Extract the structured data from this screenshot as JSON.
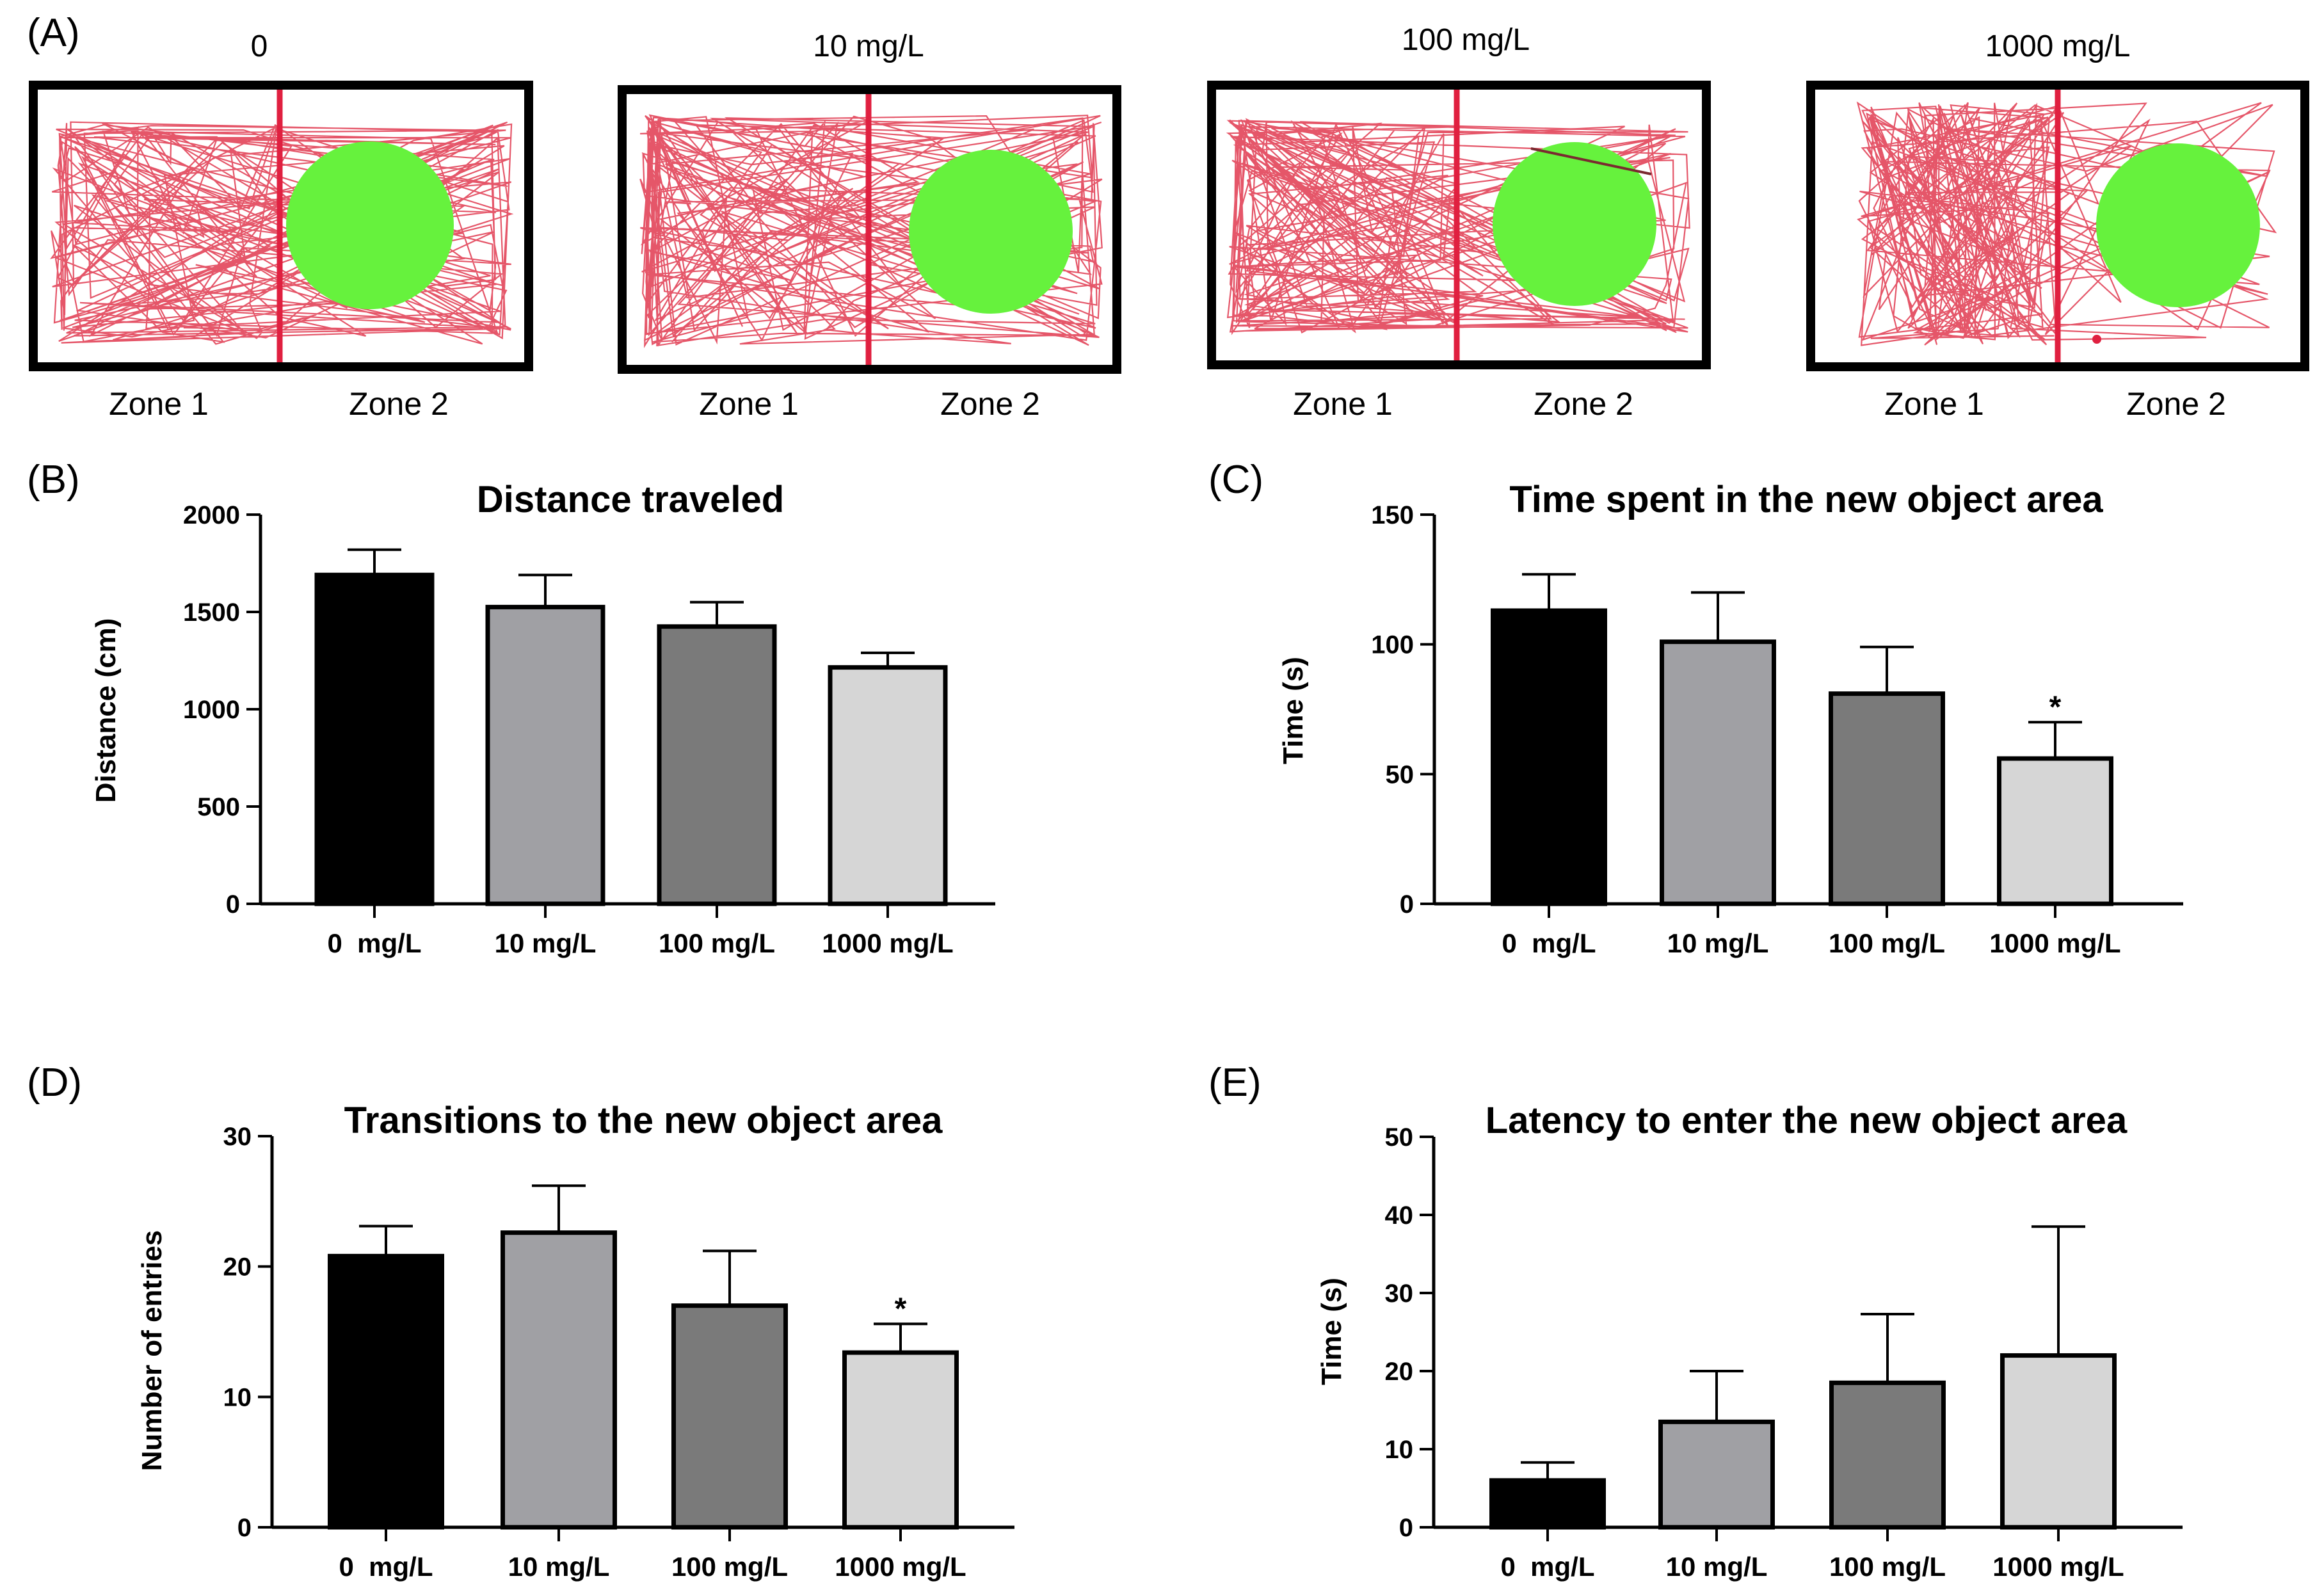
{
  "panel_a": {
    "letter": "(A)",
    "arenas": [
      {
        "title": "0",
        "zone1": "Zone 1",
        "zone2": "Zone 2"
      },
      {
        "title": "10 mg/L",
        "zone1": "Zone 1",
        "zone2": "Zone 2"
      },
      {
        "title": "100 mg/L",
        "zone1": "Zone 1",
        "zone2": "Zone 2"
      },
      {
        "title": "1000 mg/L",
        "zone1": "Zone 1",
        "zone2": "Zone 2"
      }
    ],
    "colors": {
      "track": "#e0384f",
      "divider": "#e02040",
      "object": "#66f23d",
      "frame": "#000000"
    }
  },
  "chart_data": [
    {
      "letter": "(B)",
      "type": "bar",
      "title": "Distance traveled",
      "xlabel": "",
      "ylabel": "Distance (cm)",
      "categories": [
        "0  mg/L",
        "10 mg/L",
        "100 mg/L",
        "1000 mg/L"
      ],
      "values": [
        1690,
        1525,
        1425,
        1215
      ],
      "errors": [
        130,
        165,
        125,
        75
      ],
      "significance": [
        "",
        "",
        "",
        ""
      ],
      "ylim": [
        0,
        2000
      ],
      "ticks": [
        0,
        500,
        1000,
        1500,
        2000
      ],
      "tick_labels": [
        "0",
        "500",
        "1000",
        "1500",
        "2000"
      ],
      "colors": [
        "#000000",
        "#a0a0a4",
        "#7a7a7a",
        "#d6d6d6"
      ]
    },
    {
      "letter": "(C)",
      "type": "bar",
      "title": "Time spent in the new object area",
      "xlabel": "",
      "ylabel": "Time (s)",
      "categories": [
        "0  mg/L",
        "10 mg/L",
        "100 mg/L",
        "1000 mg/L"
      ],
      "values": [
        113,
        101,
        81,
        56
      ],
      "errors": [
        14,
        19,
        18,
        14
      ],
      "significance": [
        "",
        "",
        "",
        "*"
      ],
      "ylim": [
        0,
        150
      ],
      "ticks": [
        0,
        50,
        100,
        150
      ],
      "tick_labels": [
        "0",
        "50",
        "100",
        "150"
      ],
      "colors": [
        "#000000",
        "#a0a0a4",
        "#7a7a7a",
        "#d6d6d6"
      ]
    },
    {
      "letter": "(D)",
      "type": "bar",
      "title": "Transitions to the new object area",
      "xlabel": "",
      "ylabel": "Number of entries",
      "categories": [
        "0  mg/L",
        "10 mg/L",
        "100 mg/L",
        "1000 mg/L"
      ],
      "values": [
        20.8,
        22.6,
        17.0,
        13.4
      ],
      "errors": [
        2.3,
        3.6,
        4.2,
        2.2
      ],
      "significance": [
        "",
        "",
        "",
        "*"
      ],
      "ylim": [
        0,
        30
      ],
      "ticks": [
        0,
        10,
        20,
        30
      ],
      "tick_labels": [
        "0",
        "10",
        "20",
        "30"
      ],
      "colors": [
        "#000000",
        "#a0a0a4",
        "#7a7a7a",
        "#d6d6d6"
      ]
    },
    {
      "letter": "(E)",
      "type": "bar",
      "title": "Latency to enter the new object area",
      "xlabel": "",
      "ylabel": "Time (s)",
      "categories": [
        "0  mg/L",
        "10 mg/L",
        "100 mg/L",
        "1000 mg/L"
      ],
      "values": [
        6,
        13.5,
        18.5,
        22.0
      ],
      "errors": [
        2.3,
        6.5,
        8.8,
        16.5
      ],
      "significance": [
        "",
        "",
        "",
        ""
      ],
      "ylim": [
        0,
        50
      ],
      "ticks": [
        0,
        10,
        20,
        30,
        40,
        50
      ],
      "tick_labels": [
        "0",
        "10",
        "20",
        "30",
        "40",
        "50"
      ],
      "colors": [
        "#000000",
        "#a0a0a4",
        "#7a7a7a",
        "#d6d6d6"
      ]
    }
  ]
}
